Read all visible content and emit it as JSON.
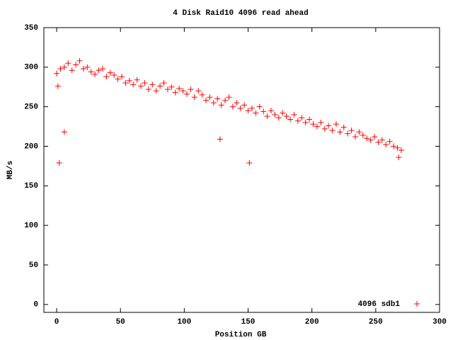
{
  "chart_data": {
    "type": "scatter",
    "title": "4 Disk Raid10 4096 read ahead",
    "x_label": "Position GB",
    "y_label": "MB/s",
    "xlim": [
      -10,
      300
    ],
    "ylim": [
      -10,
      350
    ],
    "xticks": [
      0,
      50,
      100,
      150,
      200,
      250,
      300
    ],
    "yticks": [
      0,
      50,
      100,
      150,
      200,
      250,
      300,
      350
    ],
    "legend": "bottom-right",
    "series": [
      {
        "name": "4096 sdb1",
        "color": "#ff0000",
        "x": [
          0,
          3,
          6,
          9,
          12,
          15,
          18,
          21,
          24,
          27,
          30,
          33,
          36,
          39,
          42,
          45,
          48,
          51,
          54,
          57,
          60,
          63,
          66,
          69,
          72,
          75,
          78,
          81,
          84,
          87,
          90,
          93,
          96,
          99,
          102,
          105,
          108,
          111,
          114,
          117,
          120,
          123,
          126,
          129,
          132,
          135,
          138,
          141,
          144,
          147,
          150,
          153,
          156,
          159,
          162,
          165,
          168,
          171,
          174,
          177,
          180,
          183,
          186,
          189,
          192,
          195,
          198,
          201,
          204,
          207,
          210,
          213,
          216,
          219,
          222,
          225,
          228,
          231,
          234,
          237,
          240,
          243,
          246,
          249,
          252,
          255,
          258,
          261,
          264,
          267,
          270,
          2,
          6,
          128,
          151,
          1,
          268
        ],
        "values": [
          292,
          298,
          300,
          305,
          296,
          303,
          308,
          298,
          300,
          294,
          291,
          296,
          298,
          288,
          293,
          290,
          285,
          288,
          280,
          283,
          278,
          284,
          276,
          280,
          272,
          278,
          270,
          276,
          280,
          272,
          275,
          268,
          273,
          270,
          266,
          272,
          262,
          270,
          265,
          258,
          262,
          255,
          260,
          252,
          258,
          262,
          250,
          255,
          248,
          252,
          245,
          248,
          242,
          250,
          244,
          238,
          245,
          240,
          236,
          242,
          238,
          234,
          240,
          232,
          236,
          230,
          234,
          228,
          225,
          230,
          222,
          226,
          220,
          228,
          218,
          224,
          216,
          220,
          212,
          218,
          214,
          210,
          208,
          212,
          205,
          208,
          202,
          206,
          200,
          198,
          195,
          179,
          218,
          209,
          179,
          276,
          186
        ]
      }
    ]
  }
}
